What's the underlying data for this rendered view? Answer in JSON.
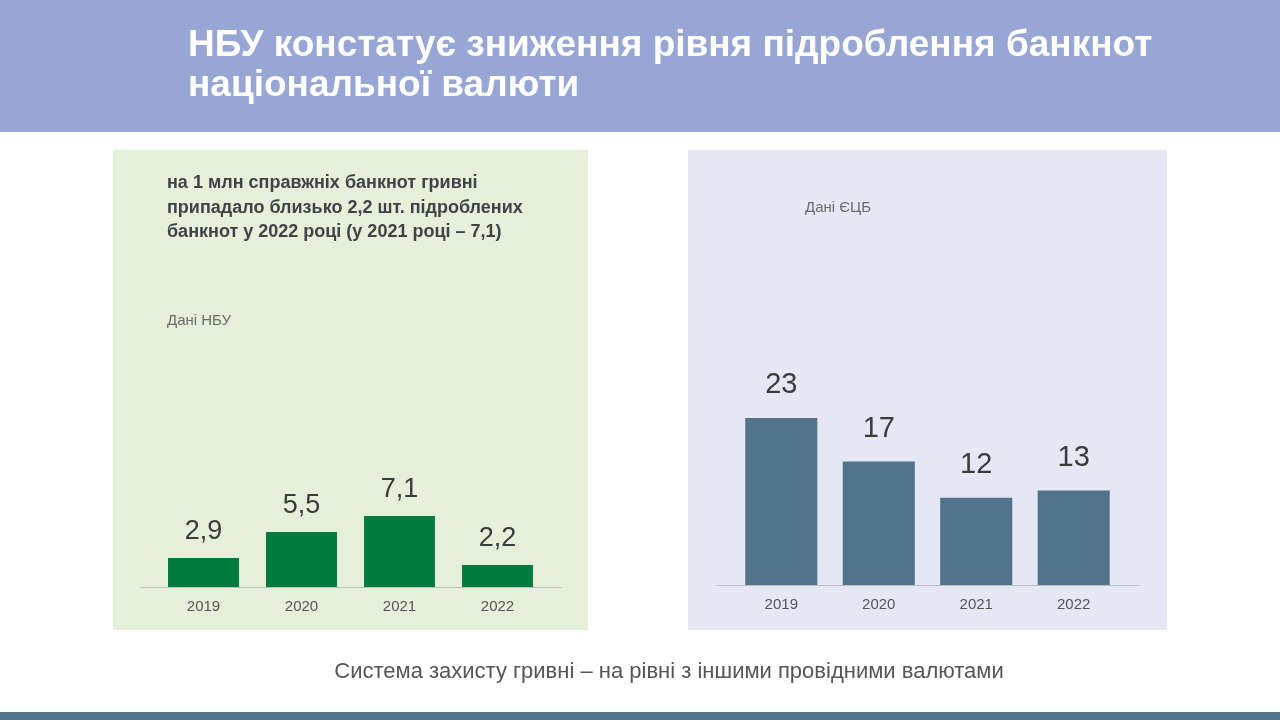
{
  "chart_data": [
    {
      "type": "bar",
      "title": "НБУ констатує зниження рівня підроблення банкнот національної валюти",
      "subtitle": "на 1 млн справжніх банкнот гривні припадало близько 2,2 шт. підроблених банкнот у 2022 році (у 2021 році – 7,1)",
      "annotations": [
        "Дані НБУ",
        "Система захисту гривні – на рівні з іншими провідними валютами"
      ],
      "categories": [
        "2019",
        "2020",
        "2021",
        "2022"
      ],
      "values": [
        2.9,
        5.5,
        7.1,
        2.2
      ],
      "color": "#007a3d",
      "value_labels": [
        "2,9",
        "5,5",
        "7,1",
        "2,2"
      ],
      "tick_labels": "x"
    },
    {
      "type": "bar",
      "annotations": [
        "Дані ЄЦБ"
      ],
      "categories": [
        "2019",
        "2020",
        "2021",
        "2022"
      ],
      "values": [
        23,
        17,
        12,
        13
      ],
      "color": "#52748b",
      "data_labels": true,
      "tick_labels": "x"
    }
  ]
}
